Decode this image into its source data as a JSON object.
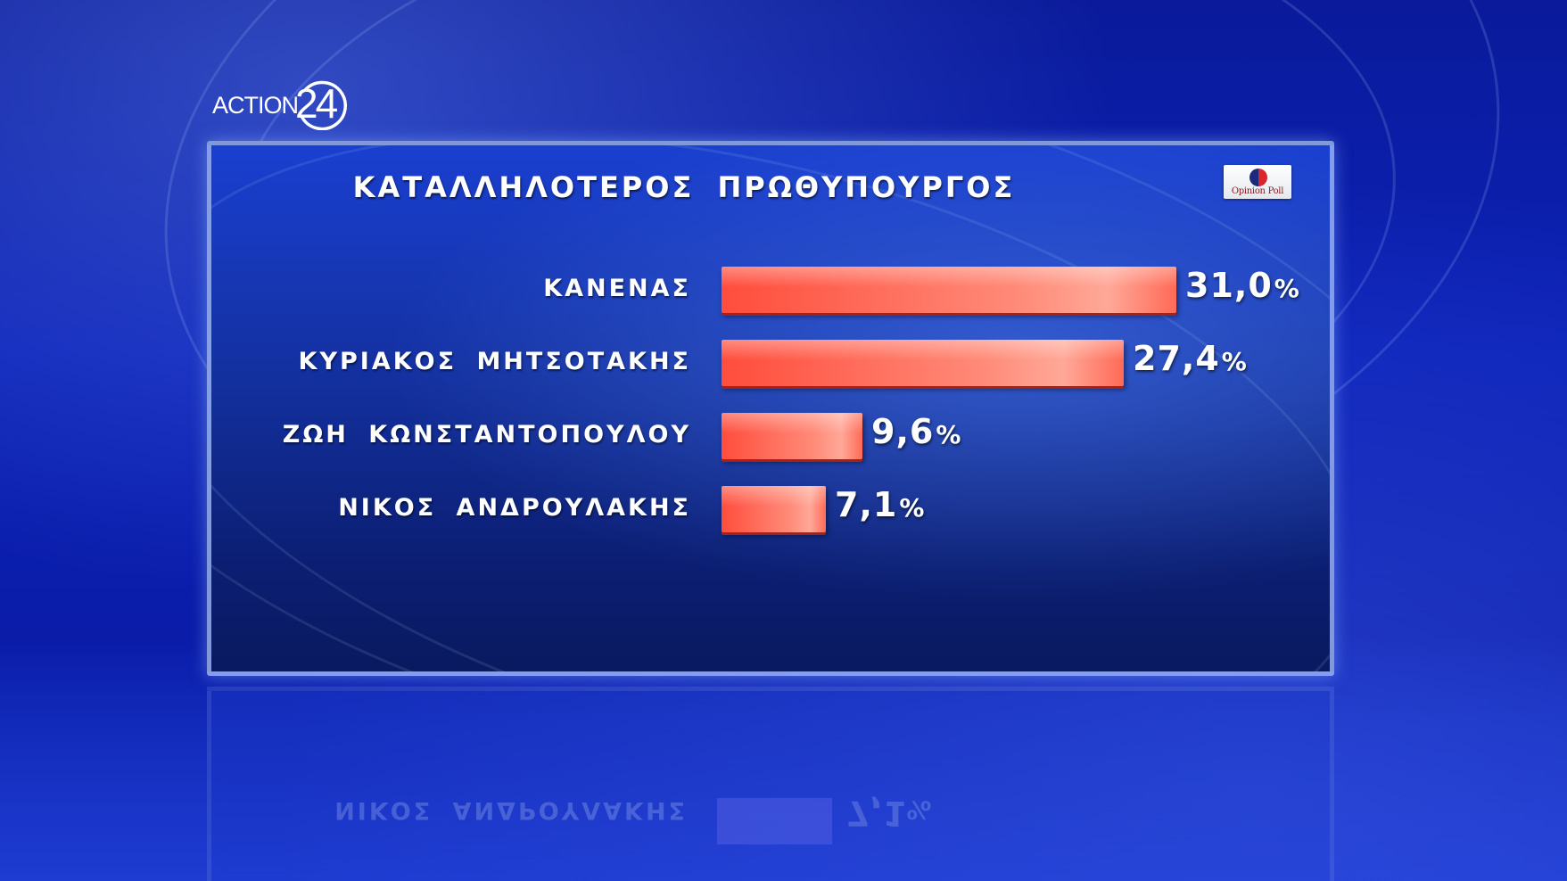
{
  "channel_logo": {
    "brand": "ACTION",
    "number": "24"
  },
  "source_badge": {
    "name": "Opinion Poll",
    "colors": [
      "#d9262b",
      "#1b2a7a"
    ]
  },
  "chart_data": {
    "type": "bar",
    "orientation": "horizontal",
    "title": "ΚΑΤΑΛΛΗΛΟΤΕΡΟΣ ΠΡΩΘΥΠΟΥΡΓΟΣ",
    "categories": [
      "ΚΑΝΕΝΑΣ",
      "ΚΥΡΙΑΚΟΣ ΜΗΤΣΟΤΑΚΗΣ",
      "ΖΩΗ ΚΩΝΣΤΑΝΤΟΠΟΥΛΟΥ",
      "ΝΙΚΟΣ ΑΝΔΡΟΥΛΑΚΗΣ"
    ],
    "values": [
      31.0,
      27.4,
      9.6,
      7.1
    ],
    "value_labels": [
      "31,0",
      "27,4",
      "9,6",
      "7,1"
    ],
    "unit": "%",
    "bar_color": "#ff5a48",
    "xlim": [
      0,
      31.0
    ],
    "grid": false
  },
  "reflection": {
    "label": "ΝΙΚΟΣ ΑΝΔΡΟΥΛΑΚΗΣ",
    "value_label": "7,1",
    "unit": "%"
  }
}
